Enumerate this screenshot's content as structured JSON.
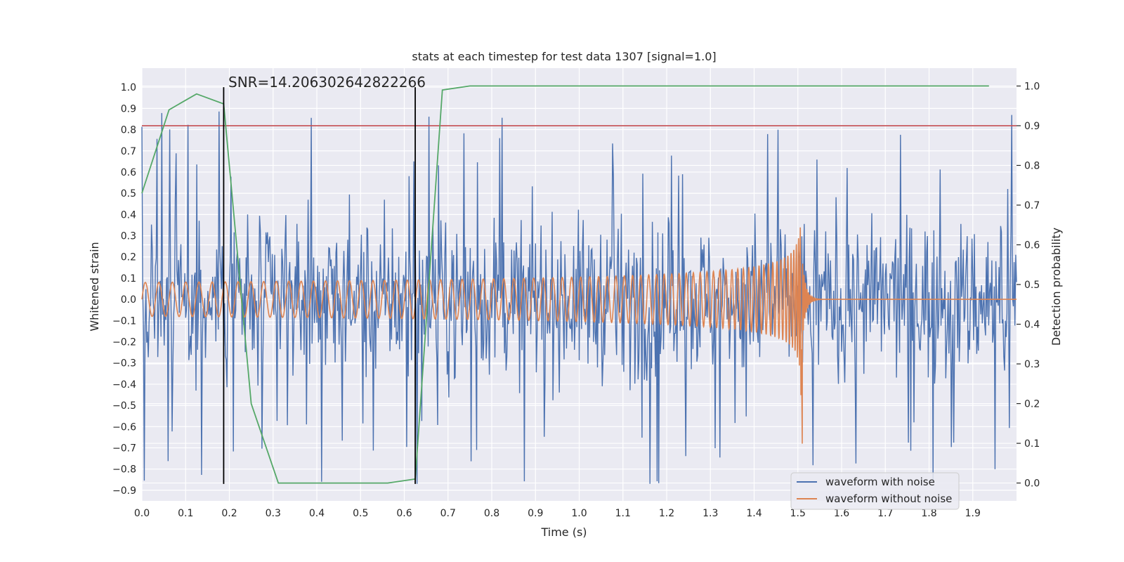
{
  "chart_data": {
    "type": "line",
    "title": "stats at each timestep for test data 1307 [signal=1.0]",
    "xlabel": "Time (s)",
    "ylabel": "Whitened strain",
    "y2label": "Detection probability",
    "annotation": "SNR=14.206302642822266",
    "xlim": [
      0.0,
      2.0
    ],
    "ylim": [
      -0.95,
      1.09
    ],
    "y2lim": [
      -0.045,
      1.045
    ],
    "grid": true,
    "legend_position": "lower-right",
    "x_ticks": [
      0.0,
      0.1,
      0.2,
      0.3,
      0.4,
      0.5,
      0.6,
      0.7,
      0.8,
      0.9,
      1.0,
      1.1,
      1.2,
      1.3,
      1.4,
      1.5,
      1.6,
      1.7,
      1.8,
      1.9
    ],
    "x_tick_labels": [
      "0.0",
      "0.1",
      "0.2",
      "0.3",
      "0.4",
      "0.5",
      "0.6",
      "0.7",
      "0.8",
      "0.9",
      "1.0",
      "1.1",
      "1.2",
      "1.3",
      "1.4",
      "1.5",
      "1.6",
      "1.7",
      "1.8",
      "1.9"
    ],
    "y_ticks": [
      1.0,
      0.9,
      0.8,
      0.7,
      0.6,
      0.5,
      0.4,
      0.3,
      0.2,
      0.1,
      0.0,
      -0.1,
      -0.2,
      -0.3,
      -0.4,
      -0.5,
      -0.6,
      -0.7,
      -0.8,
      -0.9
    ],
    "y_tick_labels": [
      "1.0",
      "0.9",
      "0.8",
      "0.7",
      "0.6",
      "0.5",
      "0.4",
      "0.3",
      "0.2",
      "0.1",
      "0.0",
      "−0.1",
      "−0.2",
      "−0.3",
      "−0.4",
      "−0.5",
      "−0.6",
      "−0.7",
      "−0.8",
      "−0.9"
    ],
    "y2_ticks": [
      1.0,
      0.9,
      0.8,
      0.7,
      0.6,
      0.5,
      0.4,
      0.3,
      0.2,
      0.1,
      0.0
    ],
    "y2_tick_labels": [
      "1.0",
      "0.9",
      "0.8",
      "0.7",
      "0.6",
      "0.5",
      "0.4",
      "0.3",
      "0.2",
      "0.1",
      "0.0"
    ],
    "series": [
      {
        "name": "waveform with noise",
        "color": "#4c72b0",
        "axis": "left",
        "style": "noise",
        "x_range": [
          0.0,
          2.0
        ],
        "approx_amplitude": 0.3,
        "peak_values": [
          0.76,
          0.81,
          0.91,
          0.85,
          0.91,
          0.93,
          0.92
        ],
        "trough_values": [
          -0.81,
          -0.86,
          -0.87,
          -0.77,
          -0.74
        ]
      },
      {
        "name": "waveform without noise",
        "color": "#dd8452",
        "axis": "left",
        "style": "chirp",
        "x_range": [
          0.0,
          2.0
        ],
        "merger_time": 1.51,
        "start_amplitude": 0.08,
        "merger_amplitude": 0.43,
        "min_value": -0.68
      },
      {
        "color": "#55a868",
        "axis": "right",
        "x": [
          0.0,
          0.062,
          0.125,
          0.187,
          0.25,
          0.312,
          0.375,
          0.437,
          0.5,
          0.562,
          0.625,
          0.687,
          0.75,
          0.812,
          0.875,
          0.937,
          1.0,
          1.062,
          1.125,
          1.187,
          1.25,
          1.312,
          1.375,
          1.437,
          1.5,
          1.562,
          1.625,
          1.687,
          1.75,
          1.812,
          1.875,
          1.937
        ],
        "values": [
          0.73,
          0.94,
          0.98,
          0.955,
          0.2,
          0.0,
          0.0,
          0.0,
          0.0,
          0.0,
          0.01,
          0.99,
          1.0,
          1.0,
          1.0,
          1.0,
          1.0,
          1.0,
          1.0,
          1.0,
          1.0,
          1.0,
          1.0,
          1.0,
          1.0,
          1.0,
          1.0,
          1.0,
          1.0,
          1.0,
          1.0,
          1.0
        ]
      }
    ],
    "hlines": [
      {
        "axis": "right",
        "value": 0.9,
        "color": "#c44e52"
      }
    ],
    "vlines": [
      {
        "x": 0.187,
        "y_range": [
          -0.87,
          1.0
        ],
        "color": "#000000"
      },
      {
        "x": 0.625,
        "y_range": [
          -0.87,
          1.0
        ],
        "color": "#000000"
      }
    ]
  }
}
